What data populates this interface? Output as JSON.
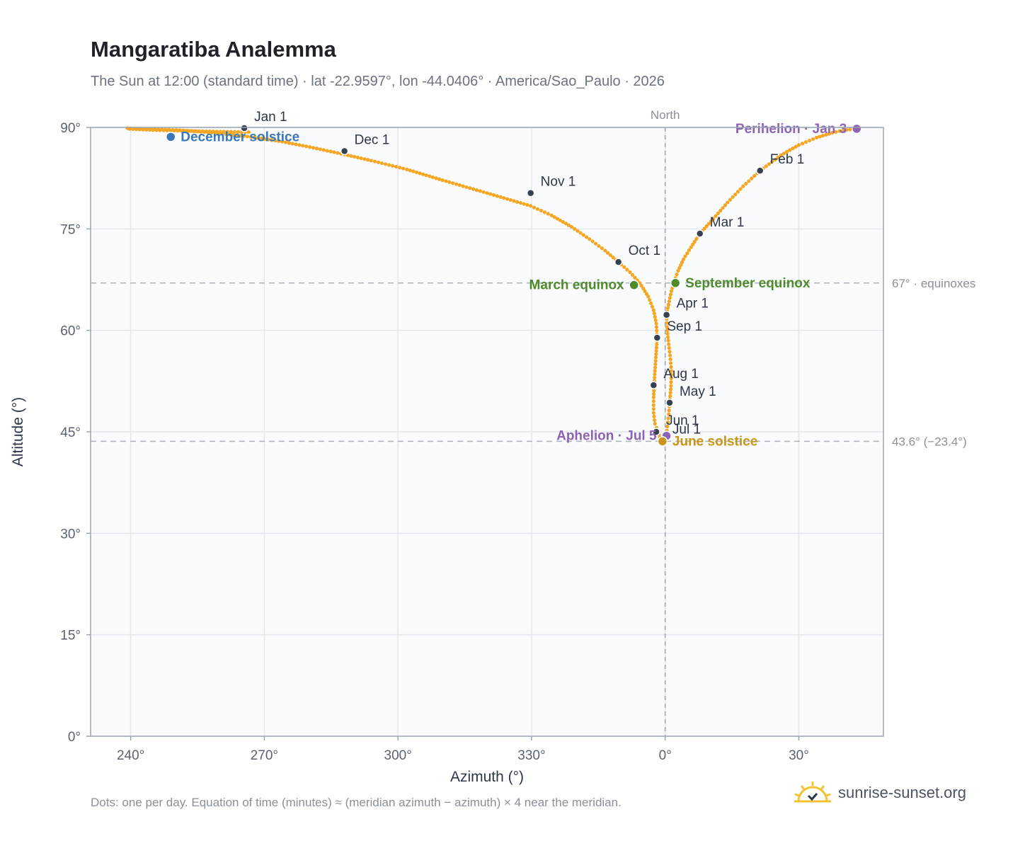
{
  "header": {
    "title": "Mangaratiba Analemma",
    "subtitle": "The Sun at 12:00 (standard time) · lat -22.9597°, lon -44.0406° · America/Sao_Paulo · 2026"
  },
  "footer": {
    "note": "Dots: one per day. Equation of time (minutes) ≈ (meridian azimuth − azimuth) × 4 near the meridian.",
    "brand": "sunrise-sunset.org",
    "brand_icon": "sun-logo-icon"
  },
  "colors": {
    "curve": "#f5a623",
    "month_dot": "#374151",
    "solstice_dec": "#3b78b8",
    "solstice_jun": "#c9951a",
    "equinox": "#4f8a2b",
    "apsis": "#8e62b4",
    "plot_bg": "#f9fbfd",
    "grid": "#e3e8ee",
    "axis": "#9aa5b4"
  },
  "chart_data": {
    "type": "scatter",
    "title": "Mangaratiba Analemma",
    "xlabel": "Azimuth (°)",
    "ylabel": "Altitude (°)",
    "xlim": [
      -129,
      49
    ],
    "ylim": [
      0,
      90
    ],
    "x_ticks": [
      {
        "value": -120,
        "label": "240°"
      },
      {
        "value": -90,
        "label": "270°"
      },
      {
        "value": -60,
        "label": "300°"
      },
      {
        "value": -30,
        "label": "330°"
      },
      {
        "value": 0,
        "label": "0°"
      },
      {
        "value": 30,
        "label": "30°"
      }
    ],
    "y_ticks": [
      {
        "value": 0,
        "label": "0°"
      },
      {
        "value": 15,
        "label": "15°"
      },
      {
        "value": 30,
        "label": "30°"
      },
      {
        "value": 45,
        "label": "45°"
      },
      {
        "value": 60,
        "label": "60°"
      },
      {
        "value": 75,
        "label": "75°"
      },
      {
        "value": 90,
        "label": "90°"
      }
    ],
    "grid": true,
    "north_line": {
      "x": 0,
      "label": "North"
    },
    "reference_lines": [
      {
        "y": 67.0,
        "label": "67° · equinoxes"
      },
      {
        "y": 43.6,
        "label": "43.6° (−23.4°)"
      }
    ],
    "series": [
      {
        "kind": "daily-path",
        "points": [
          [
            -93.5,
            89.3
          ],
          [
            -115,
            89.6
          ],
          [
            -121,
            89.8
          ],
          [
            43,
            89.8
          ],
          [
            40,
            89.6
          ],
          [
            37.5,
            89.2
          ],
          [
            34,
            88.5
          ],
          [
            30,
            87.4
          ],
          [
            26,
            85.9
          ],
          [
            21.3,
            83.6
          ],
          [
            17.5,
            81.3
          ],
          [
            14,
            78.9
          ],
          [
            10.8,
            76.5
          ],
          [
            7.8,
            74.3
          ],
          [
            5.8,
            72.3
          ],
          [
            4.1,
            70.5
          ],
          [
            2.9,
            68.8
          ],
          [
            2,
            67.2
          ],
          [
            1.4,
            65.8
          ],
          [
            0.9,
            64.3
          ],
          [
            0.3,
            62.3
          ],
          [
            0.4,
            60.5
          ],
          [
            0.7,
            58.5
          ],
          [
            1.1,
            56.3
          ],
          [
            1.4,
            54.0
          ],
          [
            1.3,
            51.8
          ],
          [
            1.0,
            49.3
          ],
          [
            0.8,
            47.6
          ],
          [
            0.5,
            45.8
          ],
          [
            0.3,
            44.6
          ],
          [
            -0.5,
            43.6
          ],
          [
            -0.9,
            43.7
          ],
          [
            -1.2,
            44.2
          ],
          [
            -1.6,
            45.0
          ],
          [
            -2.3,
            46.2
          ],
          [
            -2.6,
            47.8
          ],
          [
            -2.6,
            50.1
          ],
          [
            -2.4,
            53.0
          ],
          [
            -2.1,
            56.0
          ],
          [
            -1.8,
            58.9
          ],
          [
            -2.0,
            61.0
          ],
          [
            -2.6,
            63.0
          ],
          [
            -3.8,
            65.0
          ],
          [
            -5.7,
            67.0
          ],
          [
            -7.9,
            68.6
          ],
          [
            -10.5,
            70.1
          ],
          [
            -13.5,
            71.8
          ],
          [
            -17.0,
            73.5
          ],
          [
            -21.0,
            75.3
          ],
          [
            -25.5,
            77.0
          ],
          [
            -30.2,
            78.4
          ],
          [
            -40.0,
            80.3
          ],
          [
            -50.0,
            82.2
          ],
          [
            -58.0,
            83.8
          ],
          [
            -66.0,
            85.1
          ],
          [
            -72.0,
            86.0
          ],
          [
            -79.0,
            87.0
          ],
          [
            -86.0,
            87.9
          ],
          [
            -93.0,
            88.6
          ],
          [
            -101.0,
            89.2
          ],
          [
            -109.0,
            89.6
          ],
          [
            -117.0,
            89.8
          ],
          [
            -121.5,
            89.9
          ]
        ]
      }
    ],
    "month_markers": [
      {
        "label": "Jan 1",
        "x": -94.5,
        "y": 89.9
      },
      {
        "label": "Feb 1",
        "x": 21.3,
        "y": 83.6
      },
      {
        "label": "Mar 1",
        "x": 7.8,
        "y": 74.3
      },
      {
        "label": "Apr 1",
        "x": 0.3,
        "y": 62.3
      },
      {
        "label": "May 1",
        "x": 1.0,
        "y": 49.3
      },
      {
        "label": "Jun 1",
        "x": -2.0,
        "y": 45.0
      },
      {
        "label": "Jul 1",
        "x": -0.6,
        "y": 43.7
      },
      {
        "label": "Aug 1",
        "x": -2.6,
        "y": 51.9
      },
      {
        "label": "Sep 1",
        "x": -1.8,
        "y": 58.9
      },
      {
        "label": "Oct 1",
        "x": -10.5,
        "y": 70.1
      },
      {
        "label": "Nov 1",
        "x": -30.2,
        "y": 80.3
      },
      {
        "label": "Dec 1",
        "x": -72.0,
        "y": 86.5
      }
    ],
    "events": [
      {
        "label": "December solstice",
        "x": -111.0,
        "y": 88.6,
        "kind": "solstice_dec"
      },
      {
        "label": "Perihelion · Jan 3",
        "x": 43.0,
        "y": 89.8,
        "kind": "apsis"
      },
      {
        "label": "March equinox",
        "x": -7.0,
        "y": 66.7,
        "kind": "equinox"
      },
      {
        "label": "September equinox",
        "x": 2.3,
        "y": 67.0,
        "kind": "equinox"
      },
      {
        "label": "Aphelion · Jul 5",
        "x": 0.3,
        "y": 44.4,
        "kind": "apsis"
      },
      {
        "label": "June solstice",
        "x": -0.6,
        "y": 43.6,
        "kind": "solstice_jun"
      }
    ]
  }
}
